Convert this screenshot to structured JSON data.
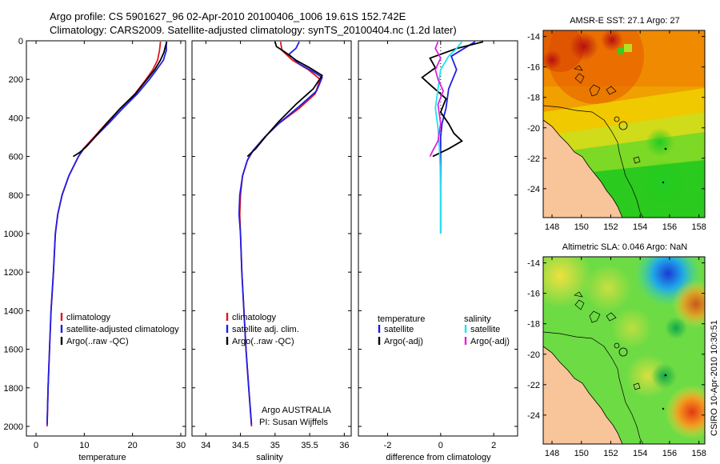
{
  "title_line1": "Argo profile: CS 5901627_96 02-Apr-2010 20100406_1006 19.61S 152.742E",
  "title_line2": "Climatology: CARS2009. Satellite-adjusted climatology: synTS_20100404.nc (1.2d later)",
  "footer_text": "CSIRO 10-Apr-2010 10:30:51",
  "float_info": [
    "Argo AUSTRALIA",
    "PI: Susan Wijffels"
  ],
  "colors": {
    "climatology": "#e3141c",
    "satellite": "#1f1fe6",
    "argo": "#000000",
    "sat_diff_sal": "#1ee3ee",
    "argo_diff_sal": "#e020e0",
    "land": "#f8c49a"
  },
  "chart_data": [
    {
      "type": "line",
      "id": "temperature",
      "xlabel": "temperature",
      "xlim": [
        -2,
        31
      ],
      "ylim": [
        0,
        2050
      ],
      "xticks": [
        0,
        10,
        20,
        30
      ],
      "yticks": [
        0,
        200,
        400,
        600,
        800,
        1000,
        1200,
        1400,
        1600,
        1800,
        2000
      ],
      "legend": [
        "climatology",
        "satellite-adjusted climatology",
        "Argo(..raw -QC)"
      ],
      "series": [
        {
          "name": "climatology",
          "color": "#e3141c",
          "points": [
            [
              25.8,
              5
            ],
            [
              25.6,
              50
            ],
            [
              25.2,
              100
            ],
            [
              24.2,
              150
            ],
            [
              22.8,
              200
            ],
            [
              20.5,
              275
            ],
            [
              17.5,
              350
            ],
            [
              14.5,
              430
            ],
            [
              12.0,
              500
            ],
            [
              9.8,
              560
            ],
            [
              8.8,
              600
            ],
            [
              6.8,
              700
            ],
            [
              5.4,
              800
            ],
            [
              4.5,
              900
            ],
            [
              4.0,
              1000
            ],
            [
              3.6,
              1200
            ],
            [
              3.1,
              1400
            ],
            [
              2.8,
              1600
            ],
            [
              2.5,
              1800
            ],
            [
              2.3,
              2000
            ]
          ]
        },
        {
          "name": "satellite-adjusted climatology",
          "color": "#1f1fe6",
          "points": [
            [
              27.0,
              5
            ],
            [
              27.0,
              50
            ],
            [
              26.4,
              100
            ],
            [
              25.0,
              150
            ],
            [
              23.5,
              200
            ],
            [
              21.0,
              275
            ],
            [
              18.0,
              350
            ],
            [
              15.0,
              430
            ],
            [
              12.2,
              500
            ],
            [
              9.9,
              560
            ],
            [
              8.8,
              600
            ],
            [
              6.8,
              700
            ],
            [
              5.4,
              800
            ],
            [
              4.5,
              900
            ],
            [
              4.0,
              1000
            ],
            [
              3.6,
              1200
            ],
            [
              3.1,
              1400
            ],
            [
              2.8,
              1600
            ],
            [
              2.5,
              1800
            ],
            [
              2.3,
              1990
            ]
          ]
        },
        {
          "name": "Argo(..raw -QC)",
          "color": "#000000",
          "points": [
            [
              27.1,
              5
            ],
            [
              26.8,
              30
            ],
            [
              26.5,
              60
            ],
            [
              25.8,
              100
            ],
            [
              24.6,
              150
            ],
            [
              23.0,
              200
            ],
            [
              20.6,
              275
            ],
            [
              17.5,
              350
            ],
            [
              14.6,
              430
            ],
            [
              12.2,
              500
            ],
            [
              10.4,
              550
            ],
            [
              9.0,
              580
            ],
            [
              7.7,
              600
            ]
          ]
        }
      ]
    },
    {
      "type": "line",
      "id": "salinity",
      "xlabel": "salinity",
      "xlim": [
        33.8,
        36.1
      ],
      "ylim": [
        0,
        2050
      ],
      "xticks": [
        34,
        34.5,
        35,
        35.5,
        36
      ],
      "xticklabels": [
        "34",
        "34.5",
        "35",
        "35.5",
        "36"
      ],
      "yticks": [
        0,
        200,
        400,
        600,
        800,
        1000,
        1200,
        1400,
        1600,
        1800,
        2000
      ],
      "legend": [
        "climatology",
        "satellite adj. clim.",
        "Argo(..raw -QC)"
      ],
      "series": [
        {
          "name": "climatology",
          "color": "#e3141c",
          "points": [
            [
              35.08,
              5
            ],
            [
              35.1,
              50
            ],
            [
              35.25,
              100
            ],
            [
              35.48,
              150
            ],
            [
              35.65,
              200
            ],
            [
              35.58,
              275
            ],
            [
              35.35,
              350
            ],
            [
              35.05,
              430
            ],
            [
              34.85,
              500
            ],
            [
              34.68,
              570
            ],
            [
              34.6,
              620
            ],
            [
              34.53,
              700
            ],
            [
              34.5,
              800
            ],
            [
              34.49,
              900
            ],
            [
              34.5,
              1000
            ],
            [
              34.52,
              1200
            ],
            [
              34.55,
              1400
            ],
            [
              34.58,
              1600
            ],
            [
              34.62,
              1800
            ],
            [
              34.66,
              2000
            ]
          ]
        },
        {
          "name": "satellite adj. clim.",
          "color": "#1f1fe6",
          "points": [
            [
              35.35,
              5
            ],
            [
              35.3,
              40
            ],
            [
              35.2,
              70
            ],
            [
              35.35,
              120
            ],
            [
              35.55,
              160
            ],
            [
              35.68,
              190
            ],
            [
              35.6,
              260
            ],
            [
              35.35,
              340
            ],
            [
              35.05,
              430
            ],
            [
              34.85,
              500
            ],
            [
              34.68,
              570
            ],
            [
              34.6,
              620
            ],
            [
              34.53,
              700
            ],
            [
              34.49,
              800
            ],
            [
              34.48,
              900
            ],
            [
              34.5,
              1000
            ],
            [
              34.52,
              1200
            ],
            [
              34.55,
              1400
            ],
            [
              34.58,
              1600
            ],
            [
              34.62,
              1800
            ],
            [
              34.66,
              1990
            ]
          ]
        },
        {
          "name": "Argo(..raw -QC)",
          "color": "#000000",
          "points": [
            [
              35.0,
              5
            ],
            [
              35.02,
              30
            ],
            [
              35.15,
              60
            ],
            [
              35.3,
              100
            ],
            [
              35.5,
              140
            ],
            [
              35.68,
              180
            ],
            [
              35.55,
              250
            ],
            [
              35.3,
              330
            ],
            [
              35.05,
              420
            ],
            [
              34.88,
              490
            ],
            [
              34.72,
              560
            ],
            [
              34.6,
              600
            ]
          ]
        }
      ]
    },
    {
      "type": "line",
      "id": "difference",
      "xlabel": "difference from climatology",
      "xlim": [
        -3.1,
        2.9
      ],
      "ylim": [
        0,
        2050
      ],
      "xticks": [
        -2,
        0,
        2
      ],
      "yticks": [
        0,
        200,
        400,
        600,
        800,
        1000,
        1200,
        1400,
        1600,
        1800,
        2000
      ],
      "zero_line_range": [
        0,
        1000
      ],
      "legend_columns": [
        {
          "heading": "temperature",
          "items": [
            "satellite",
            "Argo(-adj)"
          ]
        },
        {
          "heading": "salinity",
          "items": [
            "satellite",
            "Argo(-adj)"
          ]
        }
      ],
      "series": [
        {
          "name": "temperature satellite",
          "color": "#1f1fe6",
          "points": [
            [
              1.3,
              5
            ],
            [
              1.0,
              30
            ],
            [
              0.4,
              80
            ],
            [
              0.6,
              150
            ],
            [
              0.3,
              250
            ],
            [
              0.2,
              350
            ],
            [
              0.05,
              430
            ],
            [
              0.0,
              500
            ],
            [
              0.0,
              600
            ],
            [
              0.0,
              800
            ],
            [
              0.0,
              1000
            ]
          ]
        },
        {
          "name": "temperature Argo(-adj)",
          "color": "#000000",
          "points": [
            [
              1.6,
              5
            ],
            [
              0.6,
              40
            ],
            [
              -0.4,
              90
            ],
            [
              -0.2,
              140
            ],
            [
              -0.7,
              190
            ],
            [
              -0.3,
              240
            ],
            [
              0.2,
              300
            ],
            [
              0.0,
              370
            ],
            [
              0.3,
              430
            ],
            [
              0.5,
              480
            ],
            [
              0.8,
              520
            ],
            [
              0.3,
              560
            ],
            [
              -0.3,
              600
            ]
          ]
        },
        {
          "name": "salinity satellite",
          "color": "#1ee3ee",
          "points": [
            [
              0.8,
              5
            ],
            [
              0.6,
              40
            ],
            [
              0.3,
              80
            ],
            [
              0.0,
              150
            ],
            [
              -0.1,
              250
            ],
            [
              -0.2,
              350
            ],
            [
              -0.1,
              450
            ],
            [
              -0.05,
              550
            ],
            [
              -0.02,
              650
            ],
            [
              0.0,
              800
            ],
            [
              0.0,
              1000
            ]
          ]
        },
        {
          "name": "salinity Argo(-adj)",
          "color": "#e020e0",
          "points": [
            [
              -0.1,
              5
            ],
            [
              -0.2,
              40
            ],
            [
              0.0,
              90
            ],
            [
              -0.2,
              150
            ],
            [
              -0.1,
              200
            ],
            [
              0.1,
              260
            ],
            [
              -0.1,
              330
            ],
            [
              0.0,
              430
            ],
            [
              -0.1,
              520
            ],
            [
              -0.3,
              570
            ],
            [
              -0.4,
              600
            ]
          ]
        }
      ]
    },
    {
      "type": "heatmap",
      "id": "sst_map",
      "title": "AMSR-E SST: 27.1 Argo: 27",
      "xlim": [
        147.4,
        158.4
      ],
      "ylim": [
        -25.9,
        -13.6
      ],
      "xticks": [
        148,
        150,
        152,
        154,
        156,
        158
      ],
      "yticks": [
        -14,
        -16,
        -18,
        -20,
        -22,
        -24
      ],
      "argo_position": [
        152.742,
        -19.61
      ]
    },
    {
      "type": "heatmap",
      "id": "sla_map",
      "title": "Altimetric SLA: 0.046 Argo: NaN",
      "xlim": [
        147.4,
        158.4
      ],
      "ylim": [
        -25.9,
        -13.6
      ],
      "xticks": [
        148,
        150,
        152,
        154,
        156,
        158
      ],
      "yticks": [
        -14,
        -16,
        -18,
        -20,
        -22,
        -24
      ],
      "argo_position": [
        152.742,
        -19.61
      ]
    }
  ]
}
